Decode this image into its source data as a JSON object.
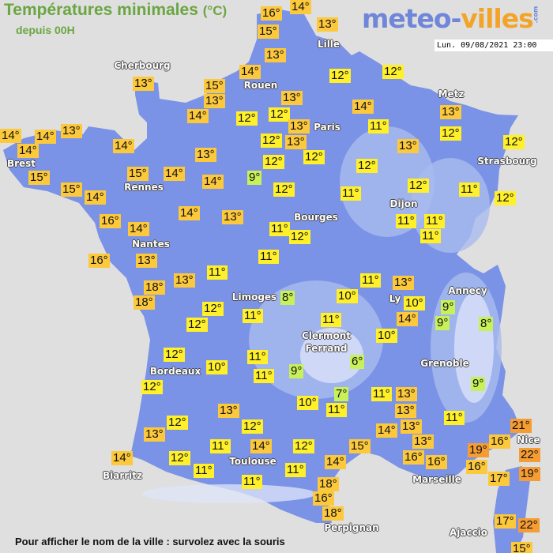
{
  "header": {
    "title": "Températures minimales",
    "unit": "(°C)",
    "subtitle": "depuis 00H",
    "logo": {
      "part1": "meteo-",
      "part2": "villes",
      "suffix": ".com"
    },
    "datetime": "Lun. 09/08/2021 23:00"
  },
  "footer": {
    "hint": "Pour afficher le nom de la ville : survolez avec la souris"
  },
  "colors": {
    "background": "#e0dfdf",
    "land": "#7b93e6",
    "highland": "#a9bbef",
    "mountain": "#dfe6fa",
    "temp_cold": "#c8f058",
    "temp_mild": "#fff02a",
    "temp_warm": "#fcc83c",
    "temp_hot": "#f59c32"
  },
  "cities": [
    "Cherbourg",
    "Lille",
    "Rouen",
    "Paris",
    "Metz",
    "Strasbourg",
    "Brest",
    "Rennes",
    "Nantes",
    "Bourges",
    "Dijon",
    "Limoges",
    "Ly",
    "Annecy",
    "Clermont",
    "Ferrand",
    "Grenoble",
    "Bordeaux",
    "Toulouse",
    "Biarritz",
    "Marseille",
    "Nice",
    "Perpignan",
    "Ajaccio"
  ],
  "temperatures": [
    16,
    14,
    15,
    13,
    13,
    14,
    15,
    13,
    14,
    13,
    12,
    12,
    13,
    12,
    12,
    14,
    13,
    13,
    12,
    11,
    12,
    12,
    13,
    13,
    12,
    12,
    12,
    12,
    11,
    12,
    9,
    12,
    11,
    11,
    11,
    11,
    14,
    13,
    11,
    12,
    11,
    13,
    14,
    14,
    14,
    14,
    13,
    15,
    15,
    14,
    14,
    15,
    14,
    16,
    14,
    16,
    13,
    11,
    13,
    18,
    18,
    12,
    12,
    11,
    8,
    11,
    10,
    13,
    10,
    14,
    9,
    9,
    8,
    11,
    10,
    12,
    11,
    10,
    11,
    9,
    6,
    12,
    9,
    7,
    11,
    13,
    10,
    11,
    13,
    11,
    13,
    12,
    12,
    13,
    14,
    13,
    21,
    16,
    13,
    11,
    14,
    12,
    15,
    19,
    22,
    16,
    16,
    14,
    12,
    14,
    11,
    11,
    16,
    17,
    19,
    11,
    18,
    16,
    18,
    17,
    22,
    15
  ],
  "degree_suffix": "°"
}
